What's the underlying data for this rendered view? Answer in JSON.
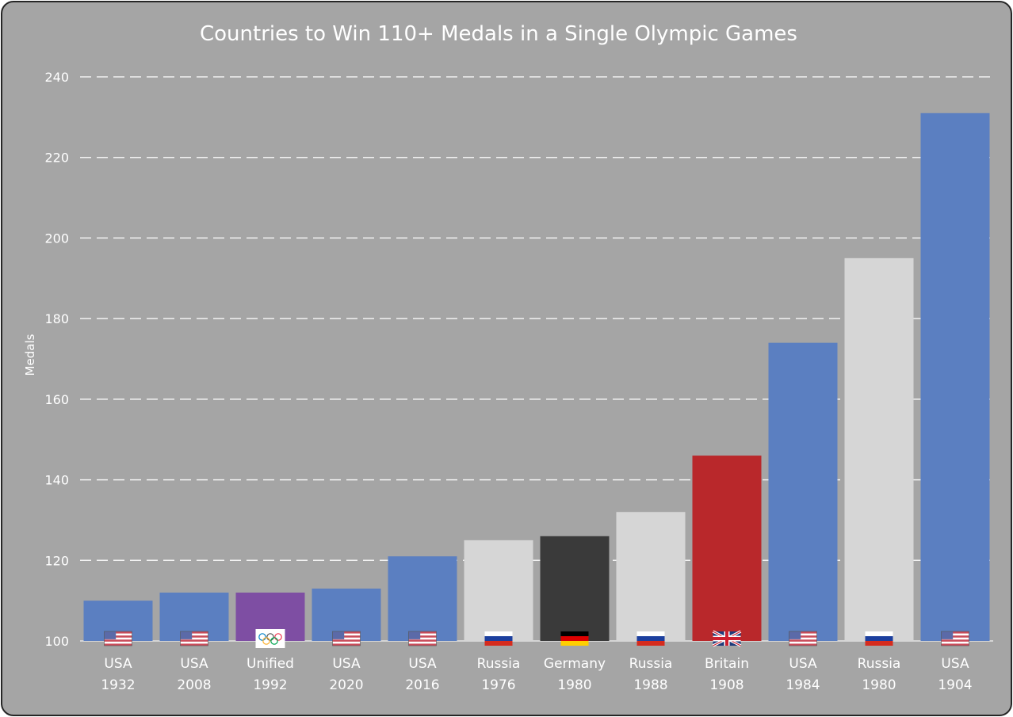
{
  "chart_data": {
    "type": "bar",
    "title": "Countries to Win 110+ Medals in a Single Olympic Games",
    "xlabel": "",
    "ylabel": "Medals",
    "ylim": [
      100,
      240
    ],
    "yticks": [
      "100",
      "120",
      "140",
      "160",
      "180",
      "200",
      "220",
      "240"
    ],
    "grid": true,
    "legend": "none",
    "bars": [
      {
        "country": "USA",
        "year": "1932",
        "value": 110,
        "color": "#5b7fc1",
        "flag": "usa-flag"
      },
      {
        "country": "USA",
        "year": "2008",
        "value": 112,
        "color": "#5b7fc1",
        "flag": "usa-flag"
      },
      {
        "country": "Unified",
        "year": "1992",
        "value": 112,
        "color": "#7e4ea3",
        "flag": "olympic-flag"
      },
      {
        "country": "USA",
        "year": "2020",
        "value": 113,
        "color": "#5b7fc1",
        "flag": "usa-flag"
      },
      {
        "country": "USA",
        "year": "2016",
        "value": 121,
        "color": "#5b7fc1",
        "flag": "usa-flag"
      },
      {
        "country": "Russia",
        "year": "1976",
        "value": 125,
        "color": "#d6d6d6",
        "flag": "russia-flag"
      },
      {
        "country": "Germany",
        "year": "1980",
        "value": 126,
        "color": "#3a3a3a",
        "flag": "germany-flag"
      },
      {
        "country": "Russia",
        "year": "1988",
        "value": 132,
        "color": "#d6d6d6",
        "flag": "russia-flag"
      },
      {
        "country": "Britain",
        "year": "1908",
        "value": 146,
        "color": "#b9282b",
        "flag": "britain-flag"
      },
      {
        "country": "USA",
        "year": "1984",
        "value": 174,
        "color": "#5b7fc1",
        "flag": "usa-flag"
      },
      {
        "country": "Russia",
        "year": "1980",
        "value": 195,
        "color": "#d6d6d6",
        "flag": "russia-flag"
      },
      {
        "country": "USA",
        "year": "1904",
        "value": 231,
        "color": "#5b7fc1",
        "flag": "usa-flag"
      }
    ]
  }
}
